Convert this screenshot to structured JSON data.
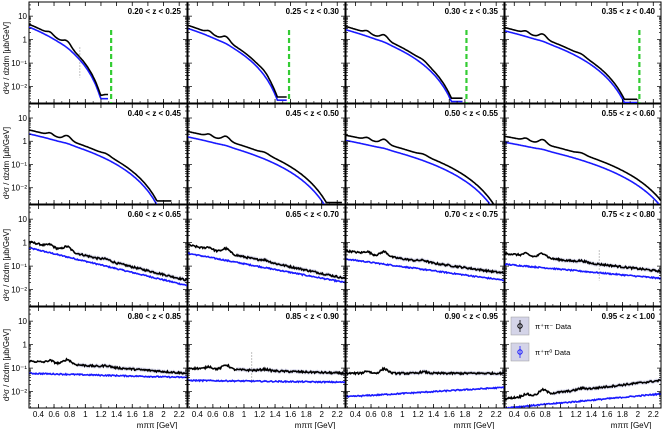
{
  "chart_data": {
    "type": "line",
    "layout": "4x4 grid of panels",
    "y_scale": "log",
    "ylim": [
      0.002,
      40
    ],
    "xlim": [
      0.28,
      2.3
    ],
    "ylabel": "d²σ / dzdm [μb/GeV]",
    "xlabel": "mππ [GeV]",
    "x_ticks": [
      "0.4",
      "0.6",
      "0.8",
      "1",
      "1.2",
      "1.4",
      "1.6",
      "1.8",
      "2",
      "2.2"
    ],
    "x_tick_values": [
      0.4,
      0.6,
      0.8,
      1.0,
      1.2,
      1.4,
      1.6,
      1.8,
      2.0,
      2.2
    ],
    "y_ticks": [
      "10",
      "1",
      "10⁻¹",
      "10⁻²"
    ],
    "y_tick_values": [
      10,
      1,
      0.1,
      0.01
    ],
    "colors": {
      "black_series": "#000000",
      "blue_series": "#1a1aff",
      "kinematic_limit": "#33cc33",
      "band": "#b8b8d8"
    },
    "legend": [
      {
        "label": "π⁺π⁻ Data",
        "color": "#000000"
      },
      {
        "label": "π⁺π⁰ Data",
        "color": "#1a1aff"
      }
    ],
    "panels": [
      {
        "label": "0.20 < z < 0.25",
        "black_start": 5.0,
        "blue_start": 3.8,
        "cutoff": 1.3,
        "green_line": 1.33,
        "dotted_x": 0.93
      },
      {
        "label": "0.25 < z < 0.30",
        "black_start": 4.5,
        "blue_start": 3.3,
        "cutoff": 1.56,
        "green_line": 1.58
      },
      {
        "label": "0.30 < z < 0.35",
        "black_start": 4.0,
        "blue_start": 2.9,
        "cutoff": 1.78,
        "green_line": 1.82
      },
      {
        "label": "0.35 < z < 0.40",
        "black_start": 3.6,
        "blue_start": 2.6,
        "cutoff": 2.0,
        "green_line": 2.02
      },
      {
        "label": "0.40 < z < 0.45",
        "black_start": 3.4,
        "blue_start": 2.3,
        "cutoff": 2.1
      },
      {
        "label": "0.45 < z < 0.50",
        "black_start": 2.9,
        "blue_start": 1.7,
        "cutoff": 2.26
      },
      {
        "label": "0.50 < z < 0.55",
        "black_start": 2.0,
        "blue_start": 1.2,
        "cutoff": 2.4
      },
      {
        "label": "0.55 < z < 0.60",
        "black_start": 1.8,
        "blue_start": 1.0,
        "cutoff": 2.6
      },
      {
        "label": "0.60 < z < 0.65",
        "black_start": 1.1,
        "blue_start": 0.6,
        "end_black": 0.025,
        "end_blue": 0.015
      },
      {
        "label": "0.65 < z < 0.70",
        "black_start": 0.8,
        "blue_start": 0.35,
        "end_black": 0.03,
        "end_blue": 0.02
      },
      {
        "label": "0.70 < z < 0.75",
        "black_start": 0.45,
        "blue_start": 0.2,
        "end_black": 0.05,
        "end_blue": 0.025
      },
      {
        "label": "0.75 < z < 0.80",
        "black_start": 0.35,
        "blue_start": 0.12,
        "end_black": 0.06,
        "end_blue": 0.03,
        "dotted_x": 1.5
      },
      {
        "label": "0.80 < z < 0.85",
        "black_start": 0.2,
        "blue_start": 0.06,
        "end_black": 0.06,
        "end_blue": 0.04
      },
      {
        "label": "0.85 < z < 0.90",
        "black_start": 0.1,
        "blue_start": 0.03,
        "end_black": 0.06,
        "end_blue": 0.025,
        "dotted_x": 1.1
      },
      {
        "label": "0.90 < z < 0.95",
        "black_start": 0.06,
        "blue_start": 0.006,
        "end_black": 0.06,
        "end_blue": 0.015
      },
      {
        "label": "0.95 < z < 1.00",
        "black_start": 0.005,
        "blue_start": 0.002,
        "end_black": 0.03,
        "end_blue": 0.008
      }
    ]
  }
}
